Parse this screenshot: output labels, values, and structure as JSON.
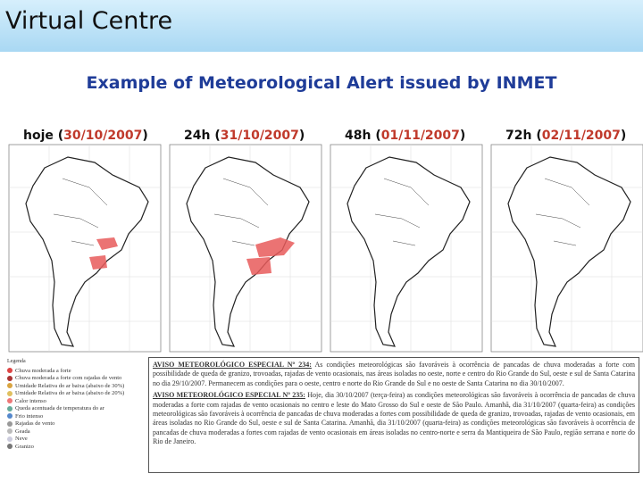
{
  "header": {
    "title": "Virtual Centre",
    "subtitle": "Example of Meteorological Alert issued by INMET"
  },
  "panels": [
    {
      "prefix": "hoje (",
      "date": "30/10/2007",
      "suffix": ")"
    },
    {
      "prefix": "24h (",
      "date": "31/10/2007",
      "suffix": ")"
    },
    {
      "prefix": "48h (",
      "date": "01/11/2007",
      "suffix": ")"
    },
    {
      "prefix": "72h (",
      "date": "02/11/2007",
      "suffix": ")"
    }
  ],
  "legend": {
    "title": "Legenda",
    "items": [
      "Chuva moderada a forte",
      "Chuva moderada a forte com rajadas de vento",
      "Umidade Relativa do ar baixa (abaixo de 30%)",
      "Umidade Relativa do ar baixa (abaixo de 20%)",
      "Calor intenso",
      "Queda acentuada de temperatura do ar",
      "Frio intenso",
      "Rajadas de vento",
      "Geada",
      "Neve",
      "Granizo"
    ]
  },
  "alerts": [
    {
      "heading": "AVISO METEOROLÓGICO ESPECIAL Nº 234:",
      "text": "As condições meteorológicas são favoráveis à ocorrência de pancadas de chuva moderadas a forte com possibilidade de queda de granizo, trovoadas, rajadas de vento ocasionais, nas áreas isoladas no oeste, norte e centro do Rio Grande do Sul, oeste e sul de Santa Catarina no dia 29/10/2007. Permanecem as condições para o oeste, centro e norte do Rio Grande do Sul e no oeste de Santa Catarina no dia 30/10/2007."
    },
    {
      "heading": "AVISO METEOROLÓGICO ESPECIAL Nº 235:",
      "text": "Hoje, dia 30/10/2007 (terça-feira) as condições meteorológicas são favoráveis à ocorrência de pancadas de chuva moderadas a forte com rajadas de vento ocasionais no centro e leste do Mato Grosso do Sul e oeste de São Paulo. Amanhã, dia 31/10/2007 (quarta-feira) as condições meteorológicas são favoráveis à ocorrência de pancadas de chuva moderadas a fortes com possibilidade de queda de granizo, trovoadas, rajadas de vento ocasionais, em áreas isoladas no Rio Grande do Sul, oeste e sul de Santa Catarina. Amanhã, dia 31/10/2007 (quarta-feira) as condições meteorológicas são favoráveis à ocorrência de pancadas de chuva moderadas a fortes com rajadas de vento ocasionais em áreas isoladas no centro-norte e serra da Mantiqueira de São Paulo, região serrana e norte do Rio de Janeiro."
    }
  ]
}
